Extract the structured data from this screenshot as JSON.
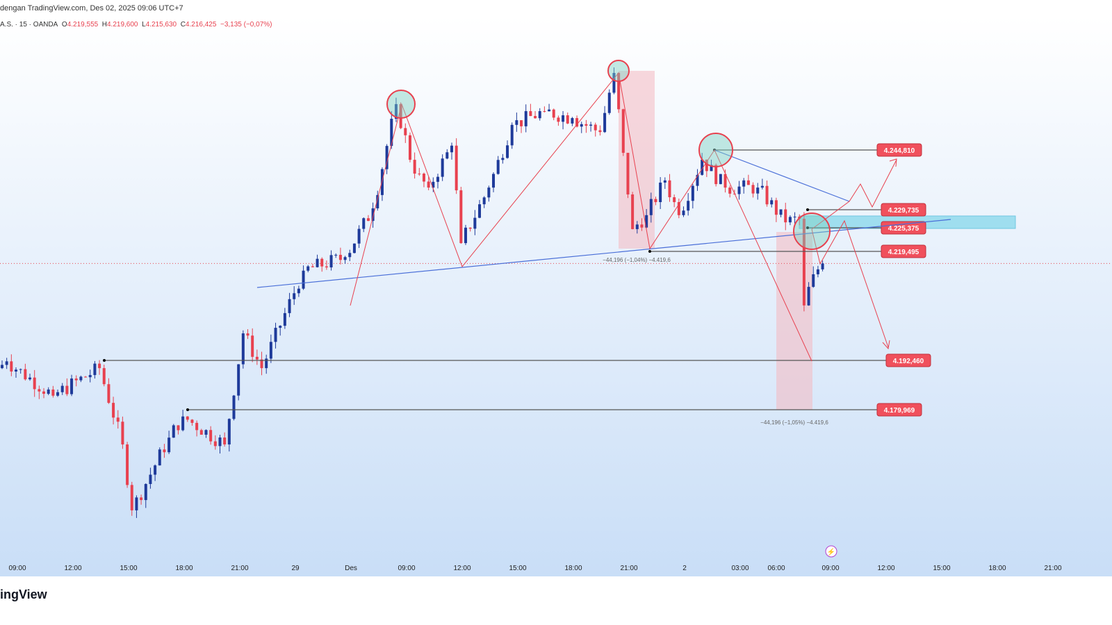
{
  "header": {
    "attribution": "dengan TradingView.com, Des 02, 2025 09:06 UTC+7"
  },
  "legend": {
    "symbol": "A.S. · 15 · OANDA",
    "o_label": "O",
    "o": "4.219,555",
    "h_label": "H",
    "h": "4.219,600",
    "l_label": "L",
    "l": "4.215,630",
    "c_label": "C",
    "c": "4.216,425",
    "change": "−3,135 (−0,07%)"
  },
  "footer": {
    "logo": "ingView"
  },
  "colors": {
    "up": "#1e3a9a",
    "down": "#e8414f",
    "label_bg": "#f0505c",
    "zone": "#7fd6ea",
    "trend": "#4a6fd8"
  },
  "chart_data": {
    "type": "candlestick",
    "interval": "15",
    "price_labels": [
      "4.244,810",
      "4.229,735",
      "4.225,375",
      "4.219,495",
      "4.192,460",
      "4.179,969"
    ],
    "price_levels": [
      4.24481,
      4.229735,
      4.225375,
      4.219495,
      4.19246,
      4.179969
    ],
    "current_price_line": 4.2164,
    "measure_labels": [
      "−44,196 (−1,04%) −4.419,6",
      "−44,196 (−1,05%) −4.419,6"
    ],
    "x_ticks": [
      "09:00",
      "12:00",
      "15:00",
      "18:00",
      "21:00",
      "29",
      "Des",
      "09:00",
      "12:00",
      "15:00",
      "18:00",
      "21:00",
      "2",
      "03:00",
      "06:00",
      "09:00",
      "12:00",
      "15:00",
      "18:00",
      "21:00"
    ],
    "price_path_bar_price": [
      [
        0,
        4.1902
      ],
      [
        2,
        4.1919
      ],
      [
        12,
        4.1833
      ],
      [
        22,
        4.1902
      ],
      [
        27,
        4.1711
      ],
      [
        29,
        4.1546
      ],
      [
        37,
        4.1728
      ],
      [
        40,
        4.1781
      ],
      [
        49,
        4.1711
      ],
      [
        53,
        4.1989
      ],
      [
        57,
        4.1902
      ],
      [
        66,
        4.2146
      ],
      [
        75,
        4.218
      ],
      [
        81,
        4.2302
      ],
      [
        86,
        4.2563
      ],
      [
        90,
        4.2389
      ],
      [
        93,
        4.2354
      ],
      [
        98,
        4.2459
      ],
      [
        100,
        4.2215
      ],
      [
        106,
        4.2354
      ],
      [
        111,
        4.2511
      ],
      [
        118,
        4.2545
      ],
      [
        124,
        4.2528
      ],
      [
        130,
        4.2493
      ],
      [
        133,
        4.2641
      ],
      [
        135,
        4.2441
      ],
      [
        137,
        4.225
      ],
      [
        140,
        4.2285
      ],
      [
        144,
        4.2372
      ],
      [
        147,
        4.2285
      ],
      [
        152,
        4.2424
      ],
      [
        157,
        4.2354
      ],
      [
        164,
        4.2354
      ],
      [
        170,
        4.2267
      ],
      [
        173,
        4.2276
      ],
      [
        174,
        4.2059
      ],
      [
        176,
        4.2137
      ],
      [
        178,
        4.2164
      ]
    ]
  }
}
